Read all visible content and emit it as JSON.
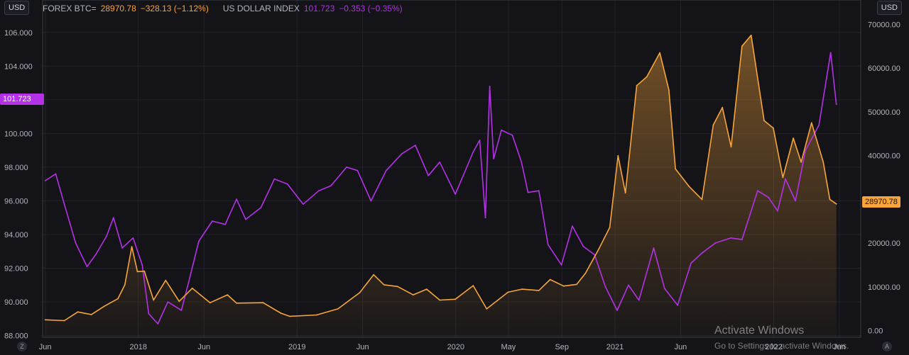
{
  "header": {
    "btc_name": "FOREX BTC=",
    "btc_value": "28970.78",
    "btc_change": "−328.13 (−1.12%)",
    "dxy_name": "US DOLLAR INDEX",
    "dxy_value": "101.723",
    "dxy_change": "−0.353 (−0.35%)"
  },
  "controls": {
    "left_currency": "USD",
    "right_currency": "USD",
    "left_corner": "Z",
    "right_corner": "A"
  },
  "badges": {
    "dxy_last": "101.723",
    "btc_last": "28970.78"
  },
  "watermark": {
    "title": "Activate Windows",
    "subtitle": "Go to Settings to activate Windows."
  },
  "colors": {
    "btc": "#f7a53b",
    "dxy": "#b431e8",
    "background": "#131318",
    "grid": "#22232b"
  },
  "chart_data": {
    "type": "line",
    "grid": true,
    "x_ticks": [
      "Jun",
      "2018",
      "Jun",
      "2019",
      "Jun",
      "2020",
      "May",
      "Sep",
      "2021",
      "Jun",
      "2022",
      "Jun"
    ],
    "left_axis": {
      "ticks": [
        "106.000",
        "104.000",
        "102.000",
        "100.000",
        "98.000",
        "96.000",
        "94.000",
        "92.000",
        "90.000",
        "88.000"
      ],
      "range": [
        87.9,
        107.0
      ]
    },
    "right_axis": {
      "ticks": [
        "70000.00",
        "60000.00",
        "50000.00",
        "40000.00",
        "30000.00",
        "20000.00",
        "10000.00",
        "0.00"
      ],
      "range": [
        -1500,
        72000
      ]
    },
    "series": [
      {
        "name": "US DOLLAR INDEX",
        "axis": "left",
        "color": "#b431e8",
        "points": [
          [
            "2017-06-01",
            97.2
          ],
          [
            "2017-06-25",
            97.6
          ],
          [
            "2017-07-15",
            95.8
          ],
          [
            "2017-08-10",
            93.5
          ],
          [
            "2017-09-05",
            92.1
          ],
          [
            "2017-09-25",
            92.8
          ],
          [
            "2017-10-20",
            93.9
          ],
          [
            "2017-11-05",
            95.0
          ],
          [
            "2017-11-25",
            93.2
          ],
          [
            "2017-12-20",
            93.8
          ],
          [
            "2018-01-10",
            92.2
          ],
          [
            "2018-01-25",
            89.3
          ],
          [
            "2018-02-15",
            88.7
          ],
          [
            "2018-03-10",
            90.0
          ],
          [
            "2018-04-10",
            89.5
          ],
          [
            "2018-04-30",
            91.5
          ],
          [
            "2018-05-20",
            93.6
          ],
          [
            "2018-06-20",
            94.8
          ],
          [
            "2018-07-20",
            94.6
          ],
          [
            "2018-08-15",
            96.1
          ],
          [
            "2018-09-05",
            94.9
          ],
          [
            "2018-10-10",
            95.6
          ],
          [
            "2018-11-10",
            97.3
          ],
          [
            "2018-12-10",
            97.0
          ],
          [
            "2019-01-15",
            95.8
          ],
          [
            "2019-02-20",
            96.6
          ],
          [
            "2019-03-20",
            96.9
          ],
          [
            "2019-04-25",
            98.0
          ],
          [
            "2019-05-20",
            97.8
          ],
          [
            "2019-06-20",
            96.0
          ],
          [
            "2019-07-25",
            97.8
          ],
          [
            "2019-08-30",
            98.8
          ],
          [
            "2019-09-30",
            99.3
          ],
          [
            "2019-10-30",
            97.5
          ],
          [
            "2019-11-25",
            98.3
          ],
          [
            "2019-12-31",
            96.4
          ],
          [
            "2020-02-10",
            98.9
          ],
          [
            "2020-02-25",
            99.6
          ],
          [
            "2020-03-09",
            95.0
          ],
          [
            "2020-03-19",
            102.8
          ],
          [
            "2020-03-28",
            98.5
          ],
          [
            "2020-04-15",
            100.2
          ],
          [
            "2020-05-10",
            99.9
          ],
          [
            "2020-05-31",
            98.3
          ],
          [
            "2020-06-15",
            96.5
          ],
          [
            "2020-07-10",
            96.6
          ],
          [
            "2020-07-31",
            93.4
          ],
          [
            "2020-08-31",
            92.2
          ],
          [
            "2020-09-25",
            94.5
          ],
          [
            "2020-10-20",
            93.3
          ],
          [
            "2020-11-15",
            92.8
          ],
          [
            "2020-12-10",
            90.9
          ],
          [
            "2021-01-06",
            89.5
          ],
          [
            "2021-02-01",
            91.0
          ],
          [
            "2021-02-25",
            90.1
          ],
          [
            "2021-03-31",
            93.2
          ],
          [
            "2021-04-25",
            90.8
          ],
          [
            "2021-05-25",
            89.8
          ],
          [
            "2021-06-25",
            92.3
          ],
          [
            "2021-07-20",
            92.9
          ],
          [
            "2021-08-20",
            93.5
          ],
          [
            "2021-09-25",
            93.8
          ],
          [
            "2021-10-20",
            93.7
          ],
          [
            "2021-11-25",
            96.6
          ],
          [
            "2021-12-20",
            96.2
          ],
          [
            "2022-01-10",
            95.4
          ],
          [
            "2022-01-28",
            97.3
          ],
          [
            "2022-02-20",
            96.0
          ],
          [
            "2022-03-15",
            99.0
          ],
          [
            "2022-04-15",
            100.5
          ],
          [
            "2022-05-12",
            104.8
          ],
          [
            "2022-05-25",
            101.723
          ]
        ]
      },
      {
        "name": "FOREX BTC=",
        "axis": "right",
        "color": "#f7a53b",
        "points": [
          [
            "2017-06-01",
            2500
          ],
          [
            "2017-07-15",
            2300
          ],
          [
            "2017-08-15",
            4300
          ],
          [
            "2017-09-15",
            3700
          ],
          [
            "2017-10-15",
            5600
          ],
          [
            "2017-11-15",
            7300
          ],
          [
            "2017-12-01",
            10500
          ],
          [
            "2017-12-17",
            19200
          ],
          [
            "2017-12-30",
            13500
          ],
          [
            "2018-01-15",
            13600
          ],
          [
            "2018-02-05",
            7000
          ],
          [
            "2018-03-05",
            11500
          ],
          [
            "2018-04-05",
            6700
          ],
          [
            "2018-05-05",
            9700
          ],
          [
            "2018-06-15",
            6400
          ],
          [
            "2018-07-25",
            8200
          ],
          [
            "2018-08-15",
            6300
          ],
          [
            "2018-10-15",
            6400
          ],
          [
            "2018-11-25",
            4000
          ],
          [
            "2018-12-15",
            3300
          ],
          [
            "2019-02-15",
            3600
          ],
          [
            "2019-04-05",
            5000
          ],
          [
            "2019-05-25",
            8700
          ],
          [
            "2019-06-26",
            12800
          ],
          [
            "2019-07-20",
            10500
          ],
          [
            "2019-08-20",
            10100
          ],
          [
            "2019-09-25",
            8200
          ],
          [
            "2019-10-26",
            9500
          ],
          [
            "2019-11-25",
            7000
          ],
          [
            "2019-12-31",
            7200
          ],
          [
            "2020-02-10",
            10300
          ],
          [
            "2020-03-12",
            5000
          ],
          [
            "2020-04-30",
            8800
          ],
          [
            "2020-06-01",
            9500
          ],
          [
            "2020-07-10",
            9200
          ],
          [
            "2020-08-05",
            11700
          ],
          [
            "2020-09-05",
            10200
          ],
          [
            "2020-10-05",
            10600
          ],
          [
            "2020-10-25",
            13100
          ],
          [
            "2020-11-25",
            18700
          ],
          [
            "2020-12-20",
            23600
          ],
          [
            "2021-01-08",
            40000
          ],
          [
            "2021-01-25",
            31500
          ],
          [
            "2021-02-20",
            56000
          ],
          [
            "2021-03-15",
            58000
          ],
          [
            "2021-04-14",
            63500
          ],
          [
            "2021-05-05",
            55000
          ],
          [
            "2021-05-20",
            37000
          ],
          [
            "2021-06-20",
            33000
          ],
          [
            "2021-07-20",
            30000
          ],
          [
            "2021-08-15",
            47000
          ],
          [
            "2021-09-05",
            51000
          ],
          [
            "2021-09-25",
            42000
          ],
          [
            "2021-10-20",
            65000
          ],
          [
            "2021-11-10",
            67500
          ],
          [
            "2021-12-10",
            48000
          ],
          [
            "2021-12-31",
            46300
          ],
          [
            "2022-01-22",
            35000
          ],
          [
            "2022-02-15",
            44000
          ],
          [
            "2022-03-05",
            38500
          ],
          [
            "2022-03-29",
            47500
          ],
          [
            "2022-04-25",
            38500
          ],
          [
            "2022-05-10",
            30000
          ],
          [
            "2022-05-25",
            28970.78
          ]
        ]
      }
    ]
  }
}
